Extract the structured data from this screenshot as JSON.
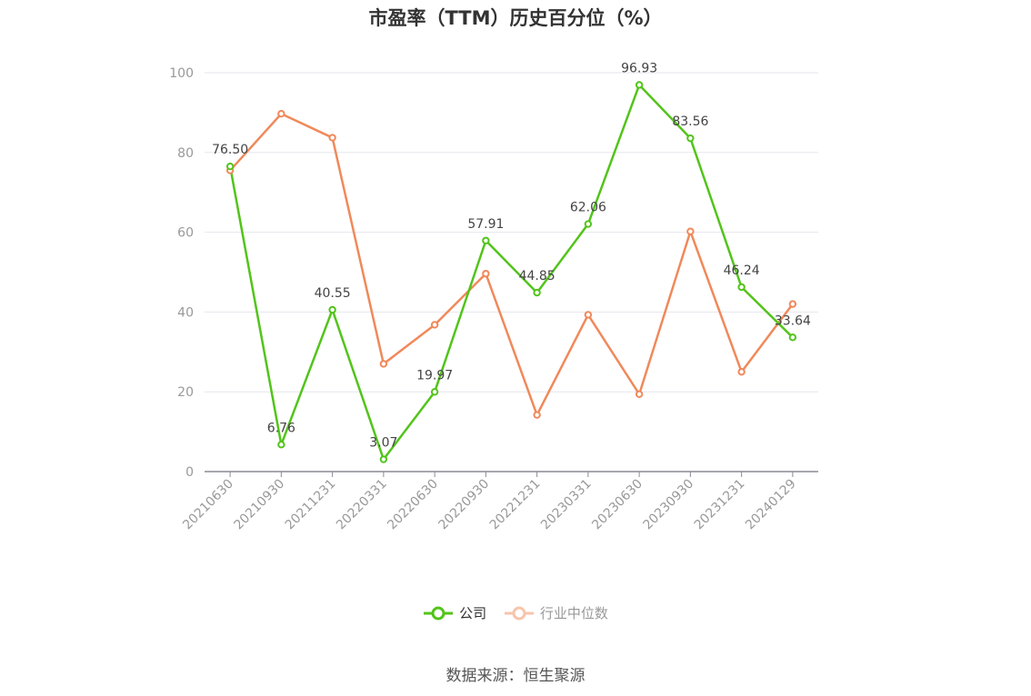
{
  "title": "市盈率（TTM）历史百分位（%）",
  "source": "数据来源：恒生聚源",
  "chart_data": {
    "type": "line",
    "title": "市盈率（TTM）历史百分位（%）",
    "xlabel": "",
    "ylabel": "",
    "categories": [
      "20210630",
      "20210930",
      "20211231",
      "20220331",
      "20220630",
      "20220930",
      "20221231",
      "20230331",
      "20230630",
      "20230930",
      "20231231",
      "20240129"
    ],
    "ylim": [
      0,
      100
    ],
    "yticks": [
      0,
      20,
      40,
      60,
      80,
      100
    ],
    "grid": true,
    "legend_position": "bottom",
    "series": [
      {
        "name": "公司",
        "color": "#52c41a",
        "values": [
          76.5,
          6.76,
          40.55,
          3.07,
          19.97,
          57.91,
          44.85,
          62.06,
          96.93,
          83.56,
          46.24,
          33.64
        ],
        "labels": [
          "76.50",
          "6.76",
          "40.55",
          "3.07",
          "19.97",
          "57.91",
          "44.85",
          "62.06",
          "96.93",
          "83.56",
          "46.24",
          "33.64"
        ]
      },
      {
        "name": "行业中位数",
        "color": "#f0895a",
        "values": [
          75.5,
          89.7,
          83.7,
          27.0,
          36.8,
          49.6,
          14.2,
          39.3,
          19.4,
          60.2,
          25.0,
          42.0
        ]
      }
    ]
  }
}
